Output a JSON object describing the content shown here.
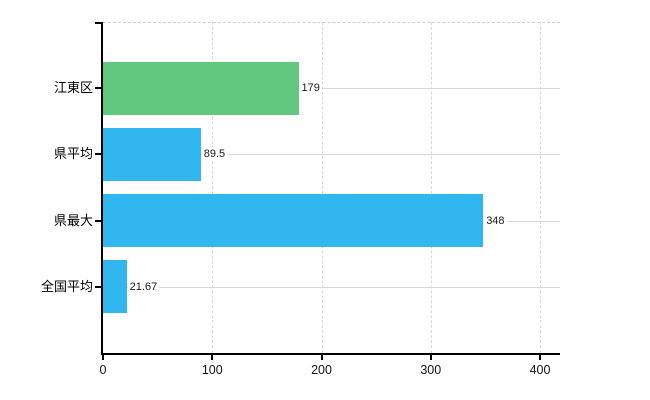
{
  "chart_data": {
    "type": "bar",
    "orientation": "horizontal",
    "title": "",
    "xlabel": "",
    "ylabel": "",
    "categories": [
      "江東区",
      "県平均",
      "県最大",
      "全国平均"
    ],
    "values": [
      179,
      89.5,
      348,
      21.67
    ],
    "value_labels": [
      "179",
      "89.5",
      "348",
      "21.67"
    ],
    "bar_colors": [
      "#63c87f",
      "#30b7f0",
      "#30b7f0",
      "#30b7f0"
    ],
    "x_ticks": [
      0,
      100,
      200,
      300,
      400
    ],
    "x_tick_labels": [
      "0",
      "100",
      "200",
      "300",
      "400"
    ],
    "xlim": [
      0,
      418
    ],
    "grid": true,
    "legend": false
  },
  "colors": {
    "background": "#ffffff",
    "bar_green": "#63c87f",
    "bar_blue": "#30b7f0",
    "gridline": "#d6dbd2",
    "axis": "#000000",
    "text": "#000000",
    "plot_border_dashed": "#cfcfcf"
  }
}
